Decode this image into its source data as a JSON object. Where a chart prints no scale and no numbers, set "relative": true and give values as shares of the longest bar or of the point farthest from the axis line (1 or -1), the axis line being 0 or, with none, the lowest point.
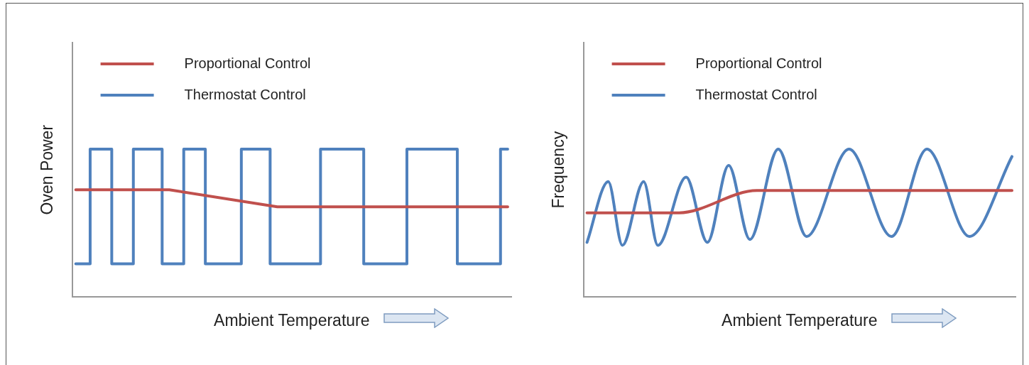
{
  "chart_data": [
    {
      "type": "line",
      "relative": true,
      "tick_labels": false,
      "legend": "top left",
      "xlabel": "Ambient Temperature",
      "ylabel": "Oven Power",
      "categories": [
        null,
        null,
        null,
        null,
        null,
        null,
        null,
        null,
        null,
        null,
        null,
        null,
        null,
        null,
        null,
        null,
        null,
        null,
        null,
        null,
        null,
        null,
        null,
        null,
        null,
        null,
        null,
        null,
        null,
        null,
        null,
        null,
        null,
        null,
        null,
        null,
        null,
        null,
        null,
        null,
        null,
        null,
        null,
        null,
        null,
        null,
        null,
        null,
        null,
        null,
        null,
        null,
        null,
        null,
        null,
        null,
        null,
        null,
        null,
        null,
        null
      ],
      "series": [
        {
          "name": "Proportional Control",
          "color": "#c0504d",
          "type": "line",
          "values": [
            0.725,
            null,
            null,
            null,
            null,
            null,
            null,
            null,
            null,
            null,
            null,
            null,
            null,
            0.725,
            null,
            null,
            null,
            null,
            null,
            null,
            null,
            null,
            null,
            null,
            null,
            null,
            null,
            null,
            0.61,
            null,
            null,
            null,
            null,
            null,
            null,
            null,
            null,
            null,
            null,
            null,
            null,
            null,
            null,
            null,
            null,
            null,
            null,
            null,
            null,
            null,
            null,
            null,
            null,
            null,
            null,
            null,
            null,
            null,
            null,
            null,
            0.61
          ]
        },
        {
          "name": "Thermostat Control",
          "color": "#4f81bd",
          "type": "step",
          "values": [
            0.225,
            0.225,
            0.225,
            1,
            1,
            1,
            0.225,
            0.225,
            0.225,
            1,
            1,
            1,
            1,
            0.225,
            0.225,
            0.225,
            1,
            1,
            1,
            0.225,
            0.225,
            0.225,
            0.225,
            0.225,
            1,
            1,
            1,
            1,
            0.225,
            0.225,
            0.225,
            0.225,
            0.225,
            0.225,
            0.225,
            1,
            1,
            1,
            1,
            1,
            1,
            0.225,
            0.225,
            0.225,
            0.225,
            0.225,
            0.225,
            1,
            1,
            1,
            1,
            1,
            1,
            1,
            0.225,
            0.225,
            0.225,
            0.225,
            0.225,
            0.225,
            1
          ]
        }
      ]
    },
    {
      "type": "line",
      "relative": true,
      "tick_labels": false,
      "legend": "top left",
      "xlabel": "Ambient Temperature",
      "ylabel": "Frequency",
      "categories": [
        null,
        null,
        null,
        null,
        null,
        null,
        null,
        null,
        null,
        null,
        null,
        null,
        null,
        null,
        null,
        null,
        null,
        null,
        null,
        null,
        null,
        null,
        null,
        null,
        null,
        null,
        null,
        null,
        null,
        null,
        null,
        null,
        null,
        null,
        null,
        null,
        null,
        null,
        null,
        null,
        null,
        null,
        null,
        null,
        null,
        null,
        null,
        null,
        null,
        null,
        null,
        null,
        null,
        null,
        null,
        null,
        null,
        null,
        null,
        null,
        null
      ],
      "series": [
        {
          "name": "Proportional Control",
          "color": "#c0504d",
          "type": "line",
          "values": [
            0.57,
            null,
            null,
            null,
            null,
            null,
            null,
            null,
            null,
            null,
            null,
            null,
            null,
            0.57,
            null,
            null,
            null,
            null,
            null,
            null,
            null,
            null,
            null,
            null,
            0.72,
            null,
            null,
            null,
            null,
            null,
            null,
            null,
            null,
            null,
            null,
            null,
            null,
            null,
            null,
            null,
            null,
            null,
            null,
            null,
            null,
            null,
            null,
            null,
            null,
            null,
            null,
            null,
            null,
            null,
            null,
            null,
            null,
            null,
            null,
            null,
            0.72
          ]
        },
        {
          "name": "Thermostat Control",
          "color": "#4f81bd",
          "type": "line",
          "values": [
            0.37,
            null,
            null,
            0.78,
            null,
            0.35,
            null,
            null,
            0.78,
            null,
            0.35,
            null,
            null,
            null,
            0.81,
            null,
            null,
            0.37,
            null,
            null,
            0.89,
            null,
            null,
            0.39,
            null,
            null,
            null,
            1,
            null,
            null,
            null,
            0.41,
            null,
            null,
            null,
            null,
            null,
            1,
            null,
            null,
            null,
            null,
            null,
            0.41,
            null,
            null,
            null,
            null,
            1,
            null,
            null,
            null,
            null,
            null,
            0.41,
            null,
            null,
            null,
            null,
            null,
            0.95
          ]
        }
      ]
    }
  ]
}
